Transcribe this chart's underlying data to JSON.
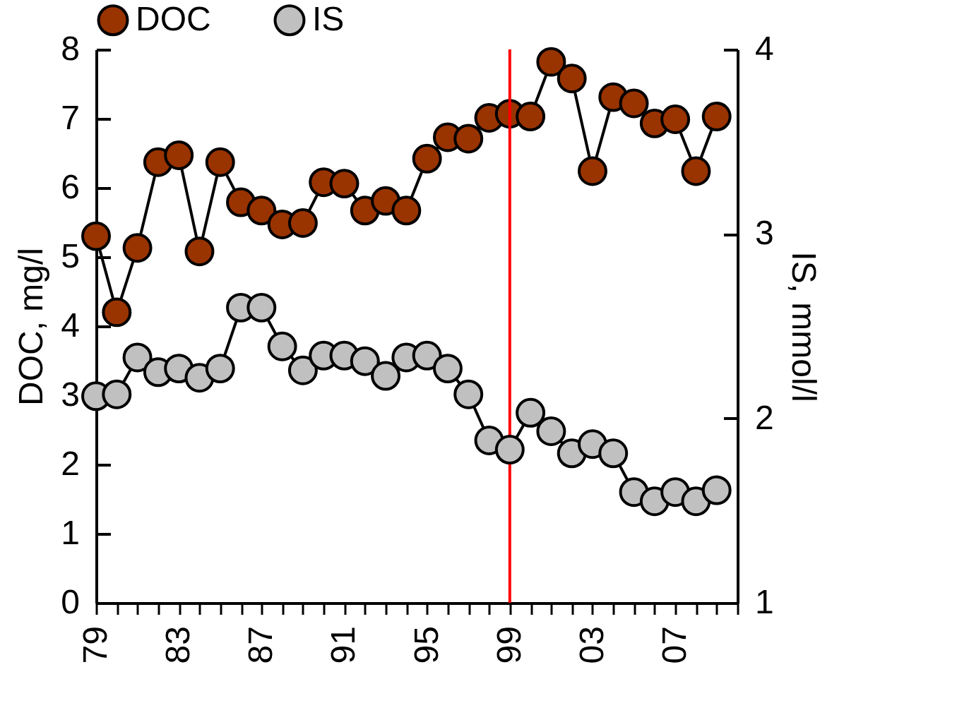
{
  "chart_data": {
    "type": "line",
    "ylabel": "DOC, mg/l",
    "y2label": "IS, mmol/l",
    "x": [
      1979,
      1980,
      1981,
      1982,
      1983,
      1984,
      1985,
      1986,
      1987,
      1988,
      1989,
      1990,
      1991,
      1992,
      1993,
      1994,
      1995,
      1996,
      1997,
      1998,
      1999,
      2000,
      2001,
      2002,
      2003,
      2004,
      2005,
      2006,
      2007,
      2008,
      2009
    ],
    "series": [
      {
        "name": "DOC",
        "color": "#993300",
        "values": [
          5.3,
          4.2,
          5.13,
          6.37,
          6.47,
          5.08,
          6.37,
          5.79,
          5.67,
          5.47,
          5.49,
          6.08,
          6.06,
          5.67,
          5.81,
          5.67,
          6.42,
          6.73,
          6.71,
          7.01,
          7.07,
          7.03,
          7.82,
          7.58,
          6.24,
          7.31,
          7.22,
          6.93,
          6.99,
          6.24,
          7.03
        ]
      },
      {
        "name": "IS",
        "color": "#c0c0c0",
        "axis": "y2",
        "values": [
          2.12,
          2.13,
          2.33,
          2.25,
          2.27,
          2.22,
          2.27,
          2.6,
          2.6,
          2.39,
          2.26,
          2.34,
          2.34,
          2.31,
          2.23,
          2.33,
          2.34,
          2.27,
          2.13,
          1.88,
          1.83,
          2.03,
          1.93,
          1.81,
          1.86,
          1.81,
          1.6,
          1.55,
          1.6,
          1.55,
          1.61
        ]
      }
    ],
    "xlim": [
      1979,
      2010
    ],
    "xticks": [
      {
        "value": 1979,
        "label": "79"
      },
      {
        "value": 1980,
        "label": null
      },
      {
        "value": 1981,
        "label": null
      },
      {
        "value": 1982,
        "label": null
      },
      {
        "value": 1983,
        "label": "83"
      },
      {
        "value": 1984,
        "label": null
      },
      {
        "value": 1985,
        "label": null
      },
      {
        "value": 1986,
        "label": null
      },
      {
        "value": 1987,
        "label": "87"
      },
      {
        "value": 1988,
        "label": null
      },
      {
        "value": 1989,
        "label": null
      },
      {
        "value": 1990,
        "label": null
      },
      {
        "value": 1991,
        "label": "91"
      },
      {
        "value": 1992,
        "label": null
      },
      {
        "value": 1993,
        "label": null
      },
      {
        "value": 1994,
        "label": null
      },
      {
        "value": 1995,
        "label": "95"
      },
      {
        "value": 1996,
        "label": null
      },
      {
        "value": 1997,
        "label": null
      },
      {
        "value": 1998,
        "label": null
      },
      {
        "value": 1999,
        "label": "99"
      },
      {
        "value": 2000,
        "label": null
      },
      {
        "value": 2001,
        "label": null
      },
      {
        "value": 2002,
        "label": null
      },
      {
        "value": 2003,
        "label": "03"
      },
      {
        "value": 2004,
        "label": null
      },
      {
        "value": 2005,
        "label": null
      },
      {
        "value": 2006,
        "label": null
      },
      {
        "value": 2007,
        "label": "07"
      },
      {
        "value": 2008,
        "label": null
      },
      {
        "value": 2009,
        "label": null
      },
      {
        "value": 2010,
        "label": null
      }
    ],
    "ylim": [
      0,
      8
    ],
    "yticks": [
      0,
      1,
      2,
      3,
      4,
      5,
      6,
      7,
      8
    ],
    "y2lim": [
      1,
      4
    ],
    "y2ticks": [
      1,
      2,
      3,
      4
    ],
    "ref_lines": [
      {
        "axis": "x",
        "value": 1999,
        "color": "#ff0000"
      }
    ],
    "grid": false,
    "legend": "top",
    "marker": "circle",
    "line_style": "solid"
  }
}
